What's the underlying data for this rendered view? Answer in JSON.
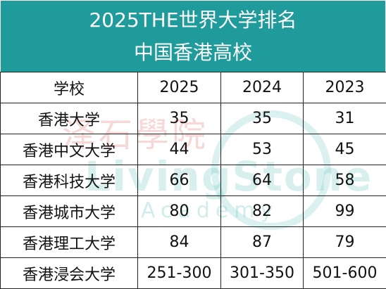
{
  "title": {
    "line1": "2025THE世界大学排名",
    "line2": "中国香港高校"
  },
  "watermark": {
    "chinese": "泽石學院",
    "english": "LivingStone",
    "sub": "Academy",
    "accent_color": "#6ec8c3"
  },
  "table": {
    "headers": [
      "学校",
      "2025",
      "2024",
      "2023"
    ],
    "rows": [
      [
        "香港大学",
        "35",
        "35",
        "31"
      ],
      [
        "香港中文大学",
        "44",
        "53",
        "45"
      ],
      [
        "香港科技大学",
        "66",
        "64",
        "58"
      ],
      [
        "香港城市大学",
        "80",
        "82",
        "99"
      ],
      [
        "香港理工大学",
        "84",
        "87",
        "79"
      ],
      [
        "香港浸会大学",
        "251-300",
        "301-350",
        "501-600"
      ]
    ]
  },
  "colors": {
    "header_bg": "#1e9b9a",
    "header_text": "#ffffff",
    "border": "#222222"
  }
}
